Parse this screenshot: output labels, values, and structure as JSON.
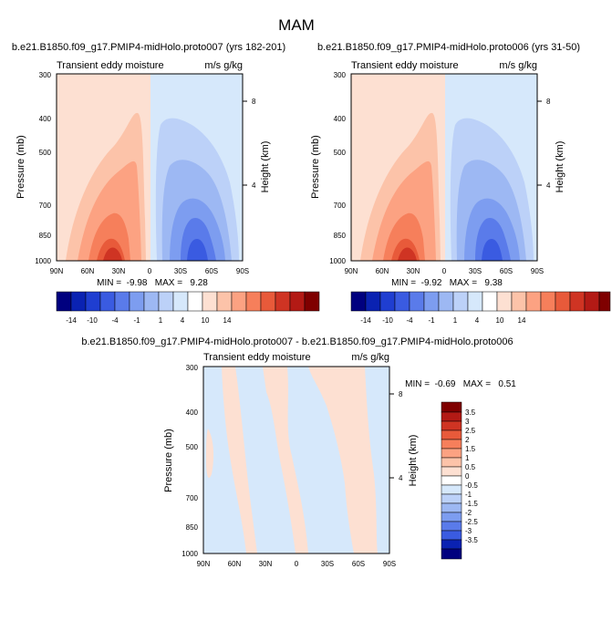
{
  "figure": {
    "title": "MAM"
  },
  "colors": {
    "reds": [
      "#fde0d2",
      "#fcc3a9",
      "#fca282",
      "#f67f5b",
      "#e85a3a",
      "#cf3423",
      "#b31a15",
      "#7f0000"
    ],
    "blues": [
      "#d6e8fb",
      "#bcd1f8",
      "#9db8f3",
      "#7d9df0",
      "#5a7bea",
      "#3a5be1",
      "#1f3ed1",
      "#0a22b2",
      "#00007f"
    ],
    "white": "#ffffff"
  },
  "chart_data": [
    {
      "id": "panel1",
      "type": "heatmap",
      "title": "b.e21.B1850.f09_g17.PMIP4-midHolo.proto007 (yrs 182-201)",
      "left_label": "Transient eddy moisture",
      "right_label": "m/s g/kg",
      "ylabel": "Pressure (mb)",
      "ylabel_right": "Height (km)",
      "x_ticks": [
        "90N",
        "60N",
        "30N",
        "0",
        "30S",
        "60S",
        "90S"
      ],
      "xlim": [
        90,
        -90
      ],
      "y_ticks": [
        "300",
        "400",
        "500",
        "700",
        "850",
        "1000"
      ],
      "y_tick_values": [
        300,
        400,
        500,
        700,
        850,
        1000
      ],
      "ylim": [
        300,
        1000
      ],
      "height_ticks": [
        "8",
        "4"
      ],
      "stats": "MIN =  -9.98   MAX =   9.28",
      "min": -9.98,
      "max": 9.28,
      "colorbar_ticks": [
        "-14",
        "-10",
        "-4",
        "-1",
        "1",
        "4",
        "10",
        "14"
      ]
    },
    {
      "id": "panel2",
      "type": "heatmap",
      "title": "b.e21.B1850.f09_g17.PMIP4-midHolo.proto006 (yrs 31-50)",
      "left_label": "Transient eddy moisture",
      "right_label": "m/s g/kg",
      "ylabel": "Pressure (mb)",
      "ylabel_right": "Height (km)",
      "x_ticks": [
        "90N",
        "60N",
        "30N",
        "0",
        "30S",
        "60S",
        "90S"
      ],
      "xlim": [
        90,
        -90
      ],
      "y_ticks": [
        "300",
        "400",
        "500",
        "700",
        "850",
        "1000"
      ],
      "y_tick_values": [
        300,
        400,
        500,
        700,
        850,
        1000
      ],
      "ylim": [
        300,
        1000
      ],
      "height_ticks": [
        "8",
        "4"
      ],
      "stats": "MIN =  -9.92   MAX =   9.38",
      "min": -9.92,
      "max": 9.38,
      "colorbar_ticks": [
        "-14",
        "-10",
        "-4",
        "-1",
        "1",
        "4",
        "10",
        "14"
      ]
    },
    {
      "id": "panel3",
      "type": "heatmap",
      "title": "b.e21.B1850.f09_g17.PMIP4-midHolo.proto007 - b.e21.B1850.f09_g17.PMIP4-midHolo.proto006",
      "left_label": "Transient eddy moisture",
      "right_label": "m/s g/kg",
      "ylabel": "Pressure (mb)",
      "ylabel_right": "Height (km)",
      "x_ticks": [
        "90N",
        "60N",
        "30N",
        "0",
        "30S",
        "60S",
        "90S"
      ],
      "xlim": [
        90,
        -90
      ],
      "y_ticks": [
        "300",
        "400",
        "500",
        "700",
        "850",
        "1000"
      ],
      "y_tick_values": [
        300,
        400,
        500,
        700,
        850,
        1000
      ],
      "ylim": [
        300,
        1000
      ],
      "height_ticks": [
        "8",
        "4"
      ],
      "stats": "MIN =  -0.69   MAX =   0.51",
      "min": -0.69,
      "max": 0.51,
      "colorbar_ticks": [
        "3.5",
        "3",
        "2.5",
        "2",
        "1.5",
        "1",
        "0.5",
        "0",
        "-0.5",
        "-1",
        "-1.5",
        "-2",
        "-2.5",
        "-3",
        "-3.5"
      ]
    }
  ]
}
